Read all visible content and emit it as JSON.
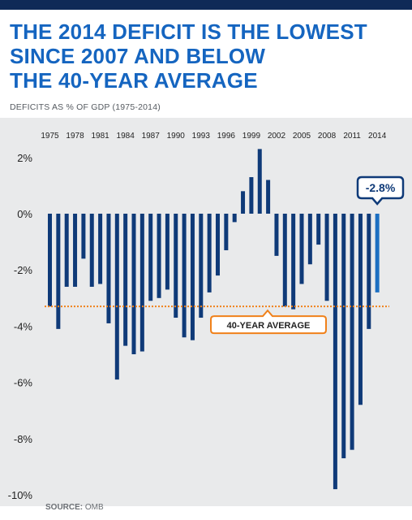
{
  "title_lines": [
    "THE 2014 DEFICIT IS THE LOWEST",
    "SINCE 2007 AND BELOW",
    "THE 40-YEAR AVERAGE"
  ],
  "subtitle": "DEFICITS AS % OF GDP (1975-2014)",
  "source_label": "SOURCE:",
  "source_value": "OMB",
  "colors": {
    "topbar": "#0f2a57",
    "title": "#1565c0",
    "bar": "#0f3a78",
    "highlight_bar": "#1c6fc2",
    "average_line": "#f0811a",
    "chart_bg": "#e9eaeb"
  },
  "chart_data": {
    "type": "bar",
    "years": [
      1975,
      1976,
      1977,
      1978,
      1979,
      1980,
      1981,
      1982,
      1983,
      1984,
      1985,
      1986,
      1987,
      1988,
      1989,
      1990,
      1991,
      1992,
      1993,
      1994,
      1995,
      1996,
      1997,
      1998,
      1999,
      2000,
      2001,
      2002,
      2003,
      2004,
      2005,
      2006,
      2007,
      2008,
      2009,
      2010,
      2011,
      2012,
      2013,
      2014
    ],
    "values": [
      -3.3,
      -4.1,
      -2.6,
      -2.6,
      -1.6,
      -2.6,
      -2.5,
      -3.9,
      -5.9,
      -4.7,
      -5.0,
      -4.9,
      -3.1,
      -3.0,
      -2.7,
      -3.7,
      -4.4,
      -4.5,
      -3.7,
      -2.8,
      -2.2,
      -1.3,
      -0.3,
      0.8,
      1.3,
      2.3,
      1.2,
      -1.5,
      -3.3,
      -3.4,
      -2.5,
      -1.8,
      -1.1,
      -3.1,
      -9.8,
      -8.7,
      -8.4,
      -6.8,
      -4.1,
      -2.8
    ],
    "x_tick_labels": [
      "1975",
      "1978",
      "1981",
      "1984",
      "1987",
      "1990",
      "1993",
      "1996",
      "1999",
      "2002",
      "2005",
      "2008",
      "2011",
      "2014"
    ],
    "y_tick_labels": [
      "2%",
      "0%",
      "-2%",
      "-4%",
      "-6%",
      "-8%",
      "-10%"
    ],
    "y_ticks": [
      2,
      0,
      -2,
      -4,
      -6,
      -8,
      -10
    ],
    "ylim": [
      -10,
      2.5
    ],
    "average": -3.3,
    "average_label": "40-YEAR AVERAGE",
    "highlight_year": 2014,
    "highlight_label": "-2.8%"
  }
}
